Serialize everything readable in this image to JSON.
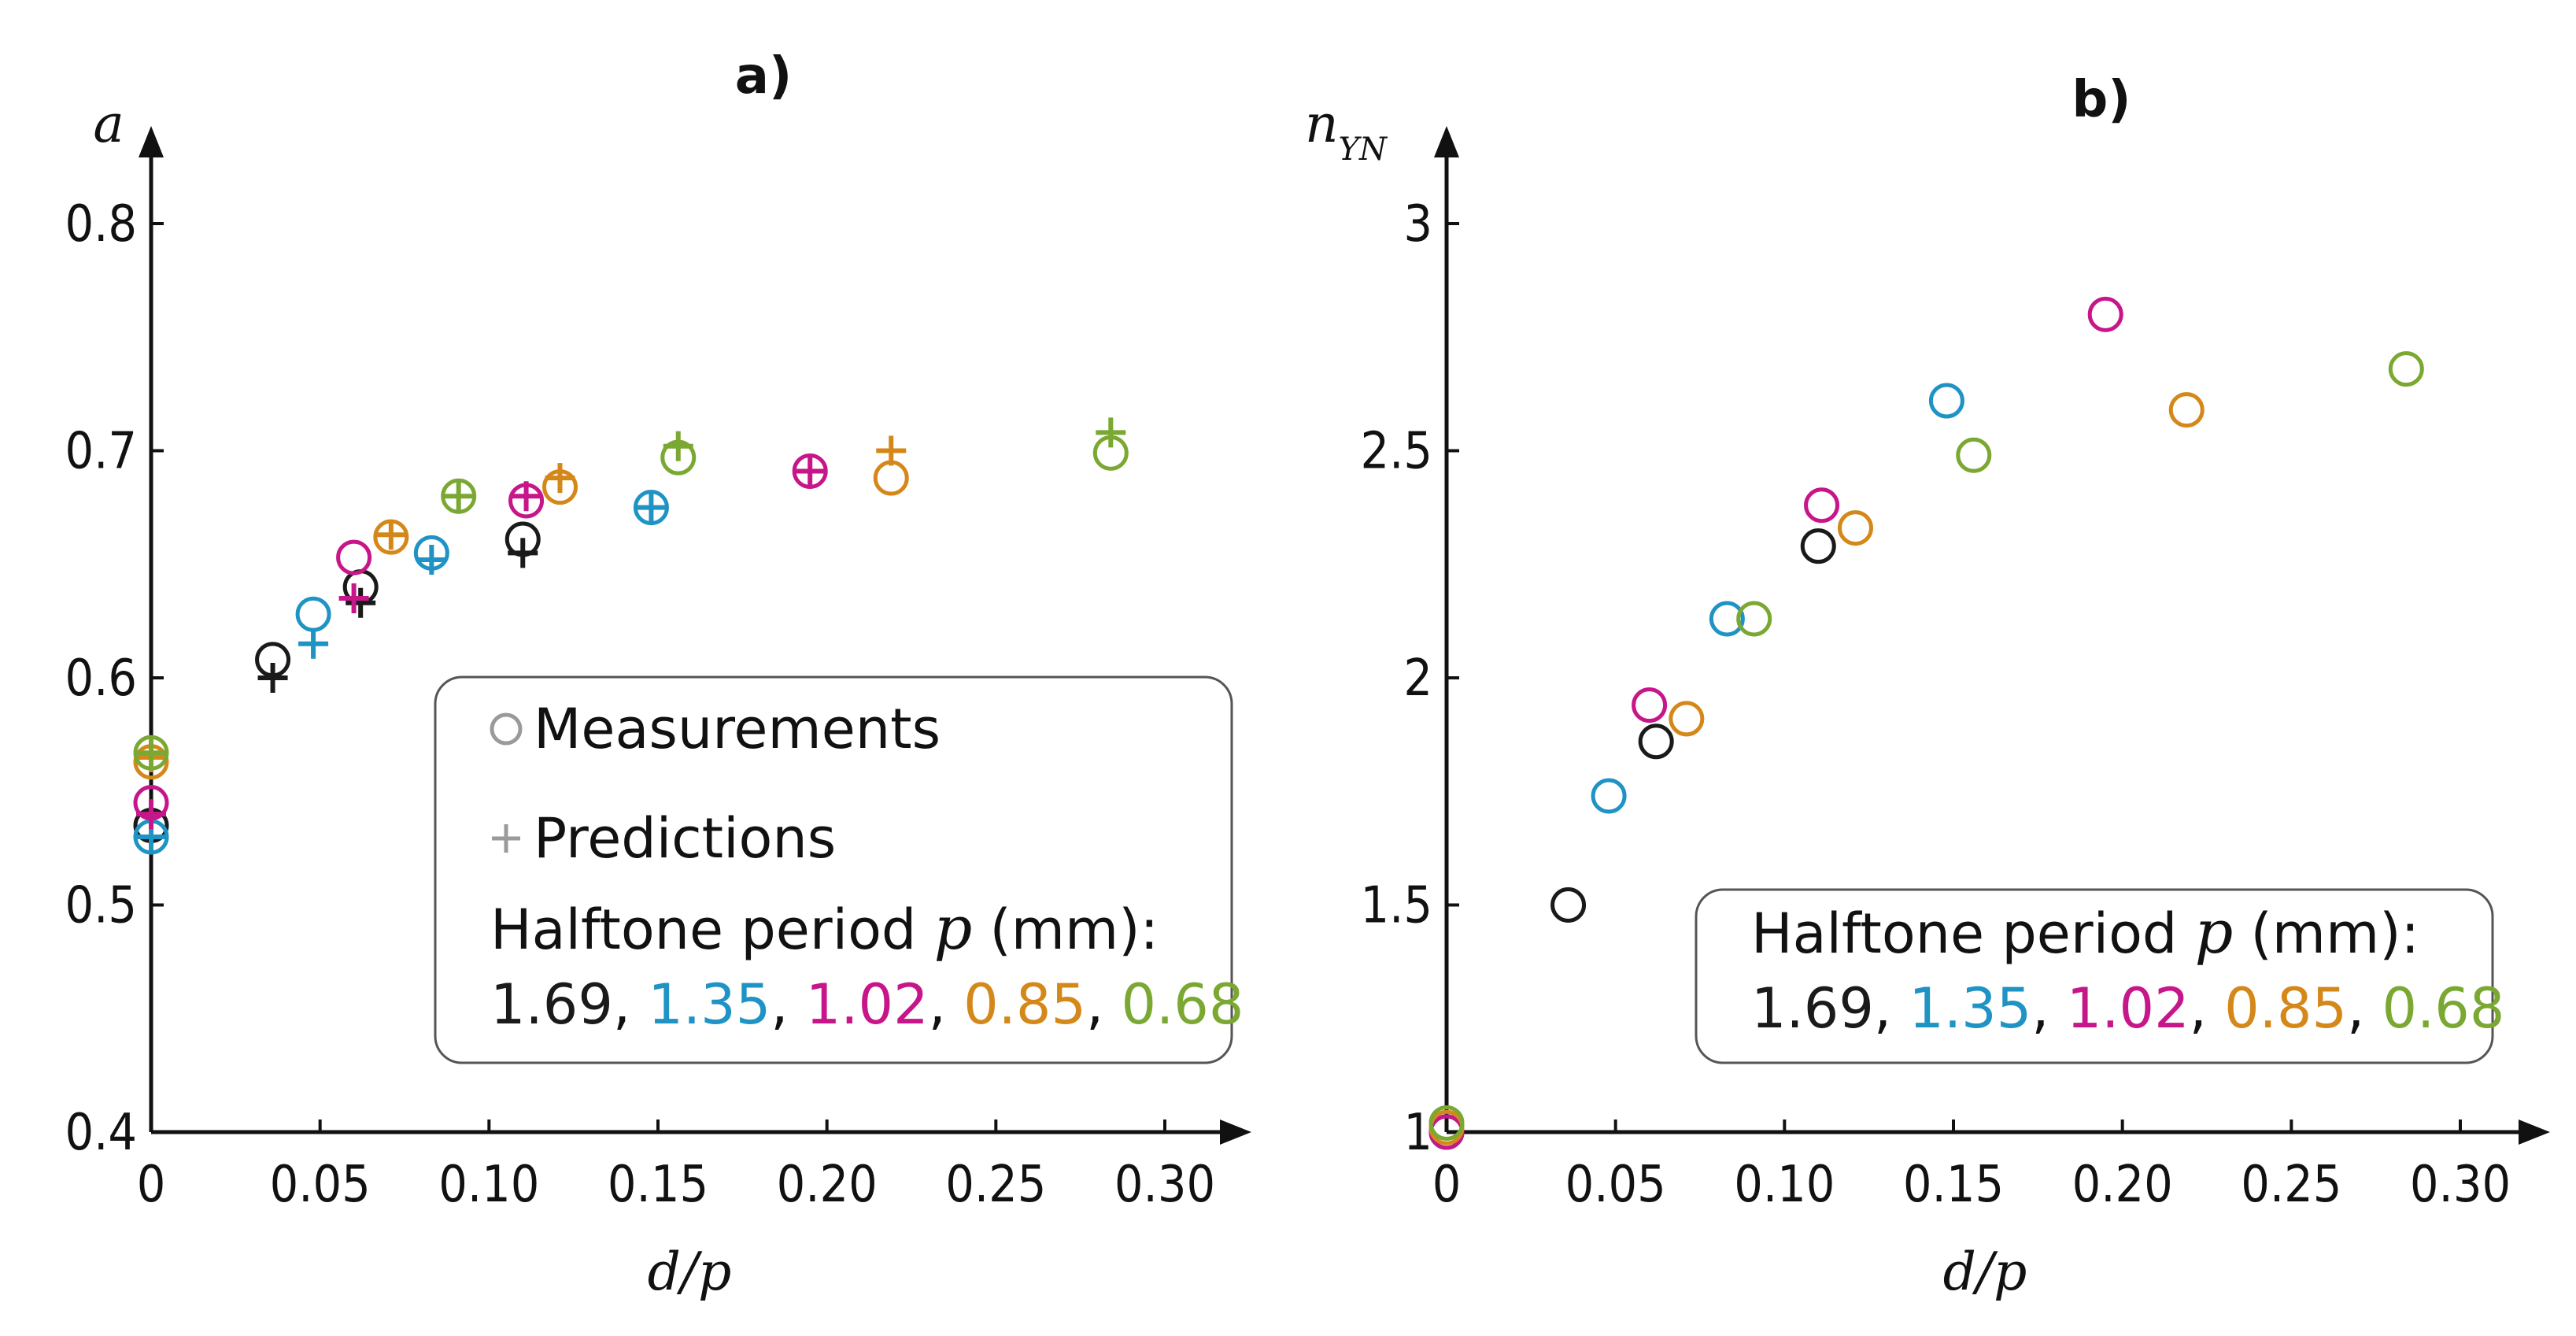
{
  "colors": {
    "axis": "#111111",
    "series": [
      "#1a1a1a",
      "#1f93c4",
      "#c7168a",
      "#d4881a",
      "#7aa832"
    ],
    "legend_marker": "#9a9a9a",
    "legend_border": "#555555"
  },
  "legend": {
    "measurements": "Measurements",
    "predictions": "Predictions",
    "period_prefix": "Halftone period ",
    "period_var": "p",
    "period_suffix": " (mm):",
    "values": [
      "1.69",
      "1.35",
      "1.02",
      "0.85",
      "0.68"
    ],
    "separator": ", "
  },
  "chart_data": [
    {
      "panel": "a)",
      "type": "scatter",
      "xlabel": "d/p",
      "ylabel": "a",
      "xlim": [
        0,
        0.3
      ],
      "ylim": [
        0.4,
        0.8
      ],
      "xticks": [
        "0",
        "0.05",
        "0.10",
        "0.15",
        "0.20",
        "0.25",
        "0.30"
      ],
      "yticks": [
        "0.4",
        "0.5",
        "0.6",
        "0.7",
        "0.8"
      ],
      "grid": false,
      "legend_position": "bottom-right",
      "series": [
        {
          "name": "1.69",
          "measurements": [
            [
              0,
              0.535
            ],
            [
              0.036,
              0.608
            ],
            [
              0.062,
              0.64
            ],
            [
              0.11,
              0.661
            ]
          ],
          "predictions": [
            [
              0,
              0.53
            ],
            [
              0.036,
              0.6
            ],
            [
              0.062,
              0.633
            ],
            [
              0.11,
              0.655
            ]
          ]
        },
        {
          "name": "1.35",
          "measurements": [
            [
              0,
              0.53
            ],
            [
              0.048,
              0.628
            ],
            [
              0.083,
              0.655
            ],
            [
              0.148,
              0.675
            ]
          ],
          "predictions": [
            [
              0,
              0.53
            ],
            [
              0.048,
              0.615
            ],
            [
              0.083,
              0.652
            ],
            [
              0.148,
              0.675
            ]
          ]
        },
        {
          "name": "1.02",
          "measurements": [
            [
              0,
              0.545
            ],
            [
              0.06,
              0.653
            ],
            [
              0.111,
              0.678
            ],
            [
              0.195,
              0.691
            ]
          ],
          "predictions": [
            [
              0,
              0.54
            ],
            [
              0.06,
              0.635
            ],
            [
              0.111,
              0.68
            ],
            [
              0.195,
              0.691
            ]
          ]
        },
        {
          "name": "0.85",
          "measurements": [
            [
              0,
              0.563
            ],
            [
              0.071,
              0.662
            ],
            [
              0.121,
              0.684
            ],
            [
              0.219,
              0.688
            ]
          ],
          "predictions": [
            [
              0,
              0.565
            ],
            [
              0.071,
              0.663
            ],
            [
              0.121,
              0.688
            ],
            [
              0.219,
              0.7
            ]
          ]
        },
        {
          "name": "0.68",
          "measurements": [
            [
              0,
              0.567
            ],
            [
              0.091,
              0.68
            ],
            [
              0.156,
              0.697
            ],
            [
              0.284,
              0.699
            ]
          ],
          "predictions": [
            [
              0,
              0.567
            ],
            [
              0.091,
              0.68
            ],
            [
              0.156,
              0.702
            ],
            [
              0.284,
              0.708
            ]
          ]
        }
      ]
    },
    {
      "panel": "b)",
      "type": "scatter",
      "xlabel": "d/p",
      "ylabel": "n",
      "ylabel_sub": "YN",
      "xlim": [
        0,
        0.3
      ],
      "ylim": [
        1,
        3
      ],
      "xticks": [
        "0",
        "0.05",
        "0.10",
        "0.15",
        "0.20",
        "0.25",
        "0.30"
      ],
      "yticks": [
        "1",
        "1.5",
        "2",
        "2.5",
        "3"
      ],
      "grid": false,
      "legend_position": "bottom-right",
      "series": [
        {
          "name": "1.69",
          "measurements": [
            [
              0,
              1.0
            ],
            [
              0.036,
              1.5
            ],
            [
              0.062,
              1.86
            ],
            [
              0.11,
              2.29
            ]
          ]
        },
        {
          "name": "1.35",
          "measurements": [
            [
              0,
              1.0
            ],
            [
              0.048,
              1.74
            ],
            [
              0.083,
              2.13
            ],
            [
              0.148,
              2.61
            ]
          ]
        },
        {
          "name": "1.02",
          "measurements": [
            [
              0,
              1.0
            ],
            [
              0.06,
              1.94
            ],
            [
              0.111,
              2.38
            ],
            [
              0.195,
              2.8
            ]
          ]
        },
        {
          "name": "0.85",
          "measurements": [
            [
              0,
              1.01
            ],
            [
              0.071,
              1.91
            ],
            [
              0.121,
              2.33
            ],
            [
              0.219,
              2.59
            ]
          ]
        },
        {
          "name": "0.68",
          "measurements": [
            [
              0,
              1.02
            ],
            [
              0.091,
              2.13
            ],
            [
              0.156,
              2.49
            ],
            [
              0.284,
              2.68
            ]
          ]
        }
      ]
    }
  ]
}
